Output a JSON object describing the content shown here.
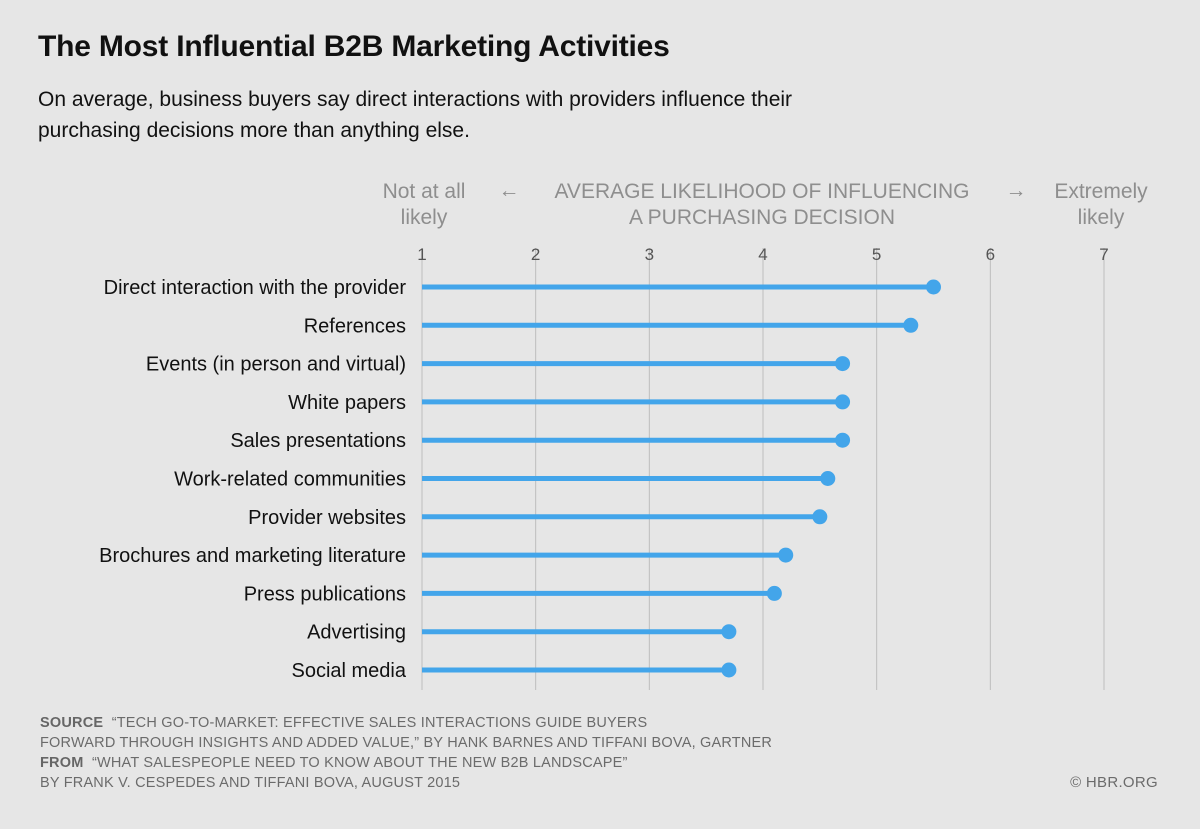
{
  "header": {
    "title": "The Most Influential B2B Marketing Activities",
    "subtitle": "On average, business buyers say direct interactions with providers influence their purchasing decisions more than anything else."
  },
  "colors": {
    "background": "#e6e6e6",
    "bar": "#43a5ea",
    "grid": "#bdbdbd",
    "hint_text": "#8e8e8e"
  },
  "chart_data": {
    "type": "bar",
    "orientation": "horizontal",
    "style": "lollipop",
    "axis_title_lines": [
      "AVERAGE LIKELIHOOD OF INFLUENCING",
      "A PURCHASING DECISION"
    ],
    "left_hint_lines": [
      "Not at all",
      "likely"
    ],
    "right_hint_lines": [
      "Extremely",
      "likely"
    ],
    "left_arrow": "←",
    "right_arrow": "→",
    "xlim": [
      1,
      7
    ],
    "ticks": [
      1,
      2,
      3,
      4,
      5,
      6,
      7
    ],
    "grid": true,
    "categories": [
      "Direct interaction with the provider",
      "References",
      "Events (in person and virtual)",
      "White papers",
      "Sales presentations",
      "Work-related communities",
      "Provider websites",
      "Brochures and marketing literature",
      "Press publications",
      "Advertising",
      "Social media"
    ],
    "values": [
      5.5,
      5.3,
      4.7,
      4.7,
      4.7,
      4.57,
      4.5,
      4.2,
      4.1,
      3.7,
      3.7
    ]
  },
  "footer": {
    "source_label": "SOURCE",
    "source_line1": "“TECH GO-TO-MARKET: EFFECTIVE SALES INTERACTIONS GUIDE BUYERS",
    "source_line2": "FORWARD THROUGH INSIGHTS AND ADDED VALUE,” BY HANK BARNES AND TIFFANI BOVA, GARTNER",
    "from_label": "FROM",
    "from_line1": "“WHAT SALESPEOPLE NEED TO KNOW ABOUT THE NEW B2B LANDSCAPE”",
    "from_line2": "BY FRANK V. CESPEDES AND TIFFANI BOVA, AUGUST 2015",
    "credit": "© HBR.ORG"
  }
}
